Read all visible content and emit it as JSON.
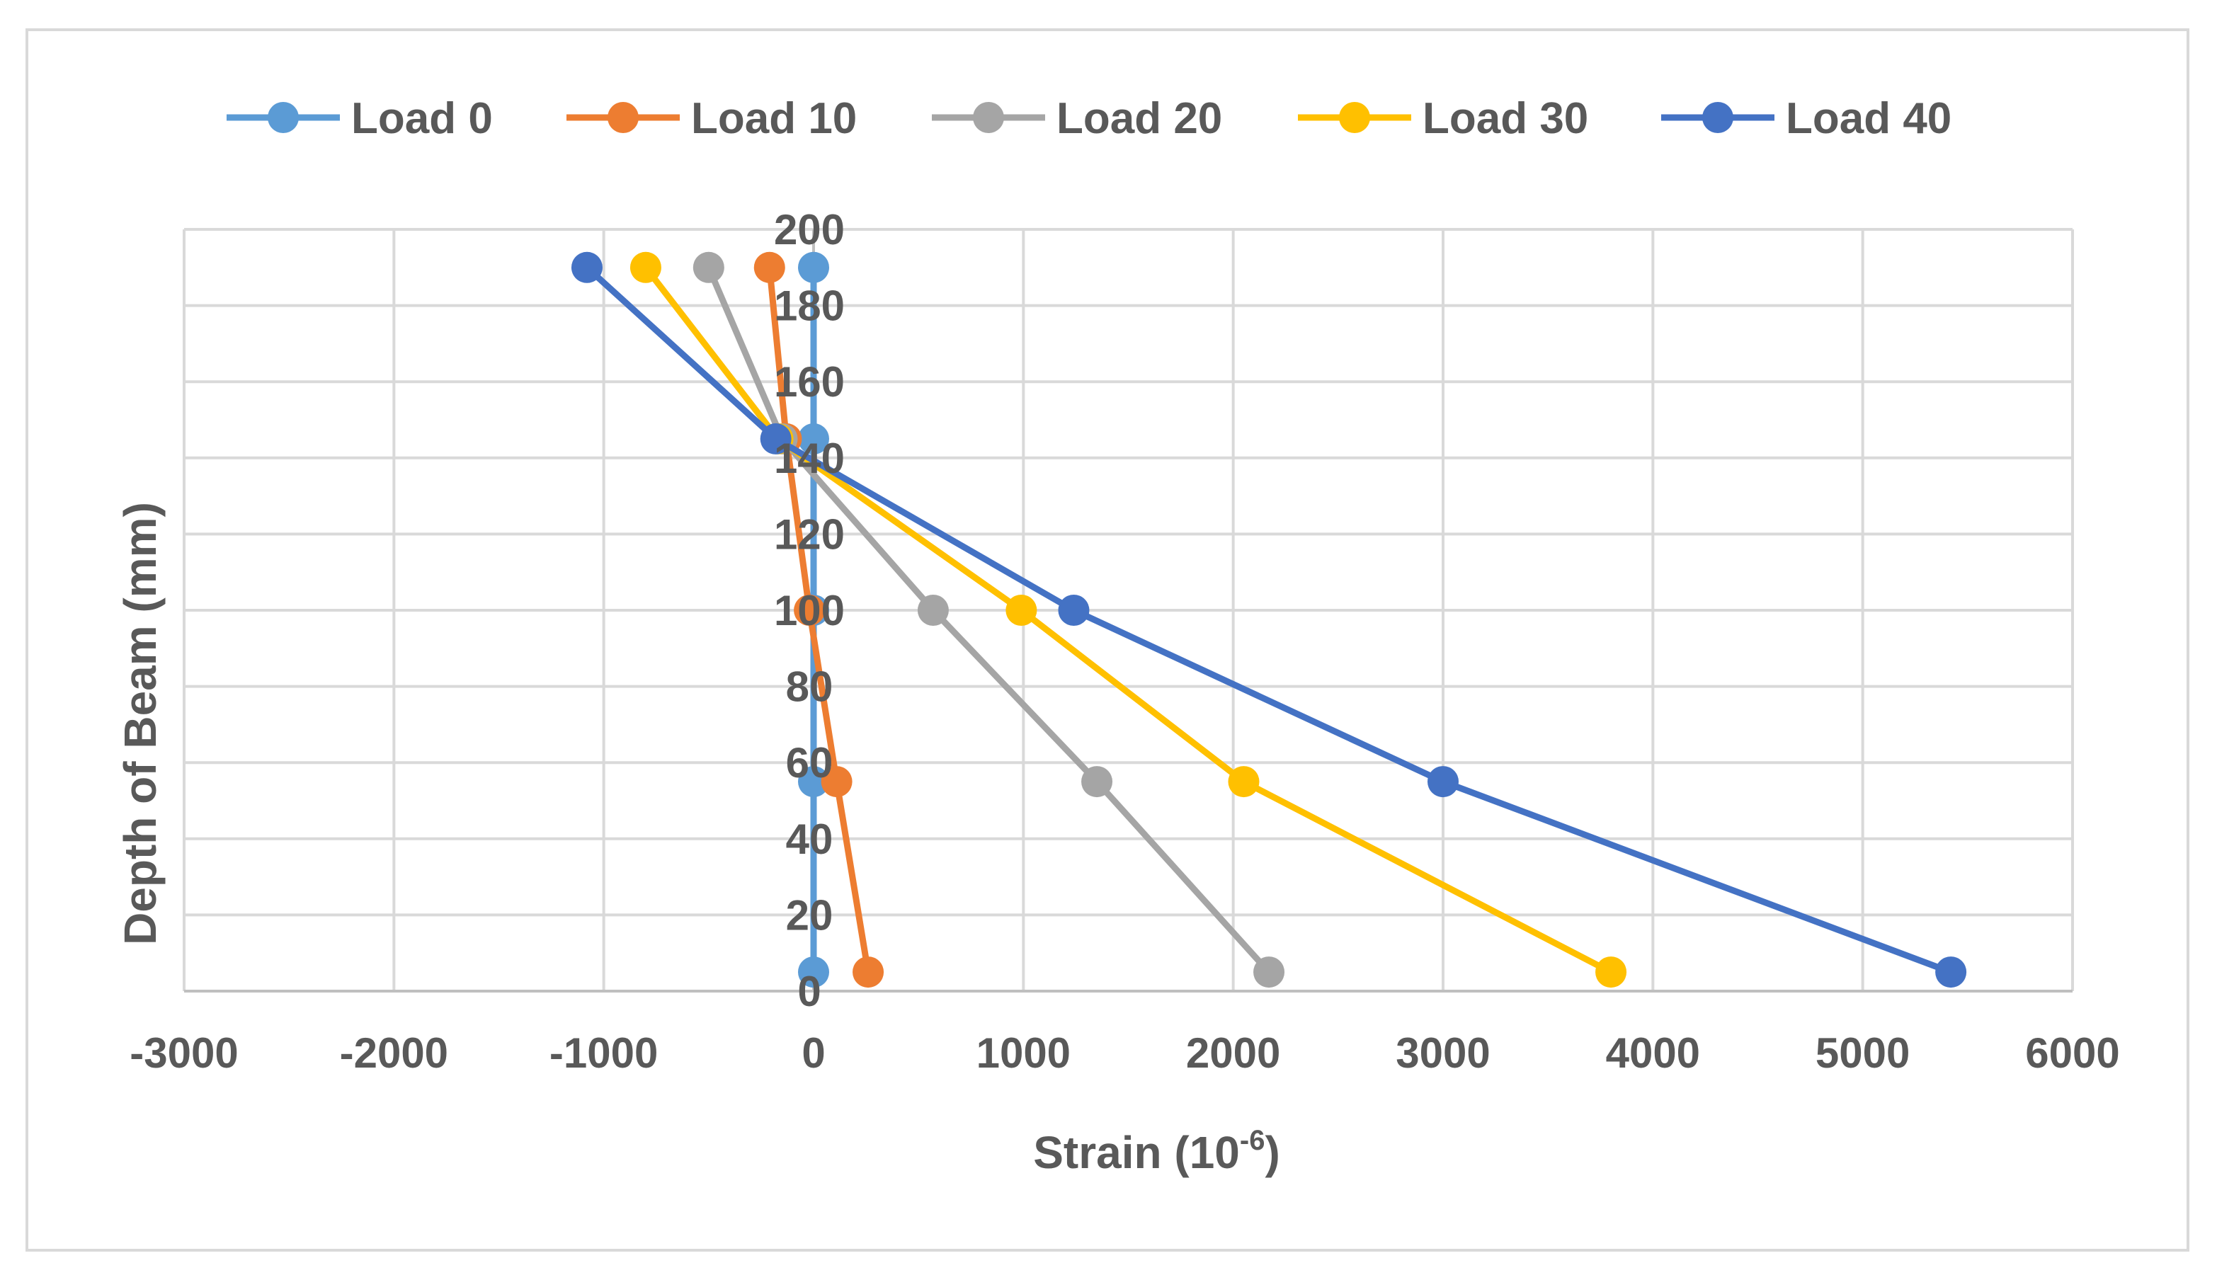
{
  "chart_data": {
    "type": "line",
    "title": "",
    "xlabel": "Strain (10",
    "xlabel_superscript": "-6",
    "xlabel_suffix": ")",
    "ylabel": "Depth of Beam (mm)",
    "xlim": [
      -3000,
      6000
    ],
    "ylim": [
      0,
      200
    ],
    "x_ticks": [
      -3000,
      -2000,
      -1000,
      0,
      1000,
      2000,
      3000,
      4000,
      5000,
      6000
    ],
    "y_ticks": [
      0,
      20,
      40,
      60,
      80,
      100,
      120,
      140,
      160,
      180,
      200
    ],
    "x_tick_labels": [
      "-3000",
      "-2000",
      "-1000",
      "0",
      "1000",
      "2000",
      "3000",
      "4000",
      "5000",
      "6000"
    ],
    "y_tick_labels": [
      "0",
      "20",
      "40",
      "60",
      "80",
      "100",
      "120",
      "140",
      "160",
      "180",
      "200"
    ],
    "grid": true,
    "legend_position": "top",
    "series": [
      {
        "name": "Load 0",
        "color": "#5B9BD5",
        "points": [
          [
            0,
            5
          ],
          [
            0,
            55
          ],
          [
            0,
            100
          ],
          [
            0,
            145
          ],
          [
            0,
            190
          ]
        ]
      },
      {
        "name": "Load 10",
        "color": "#ED7D31",
        "points": [
          [
            260,
            5
          ],
          [
            110,
            55
          ],
          [
            -20,
            100
          ],
          [
            -130,
            145
          ],
          [
            -210,
            190
          ]
        ]
      },
      {
        "name": "Load 20",
        "color": "#A5A5A5",
        "points": [
          [
            2170,
            5
          ],
          [
            1350,
            55
          ],
          [
            570,
            100
          ],
          [
            -150,
            145
          ],
          [
            -500,
            190
          ]
        ]
      },
      {
        "name": "Load 30",
        "color": "#FFC000",
        "points": [
          [
            3800,
            5
          ],
          [
            2050,
            55
          ],
          [
            990,
            100
          ],
          [
            -170,
            145
          ],
          [
            -800,
            190
          ]
        ]
      },
      {
        "name": "Load 40",
        "color": "#4472C4",
        "points": [
          [
            5420,
            5
          ],
          [
            3000,
            55
          ],
          [
            1240,
            100
          ],
          [
            -180,
            145
          ],
          [
            -1080,
            190
          ]
        ]
      }
    ]
  }
}
